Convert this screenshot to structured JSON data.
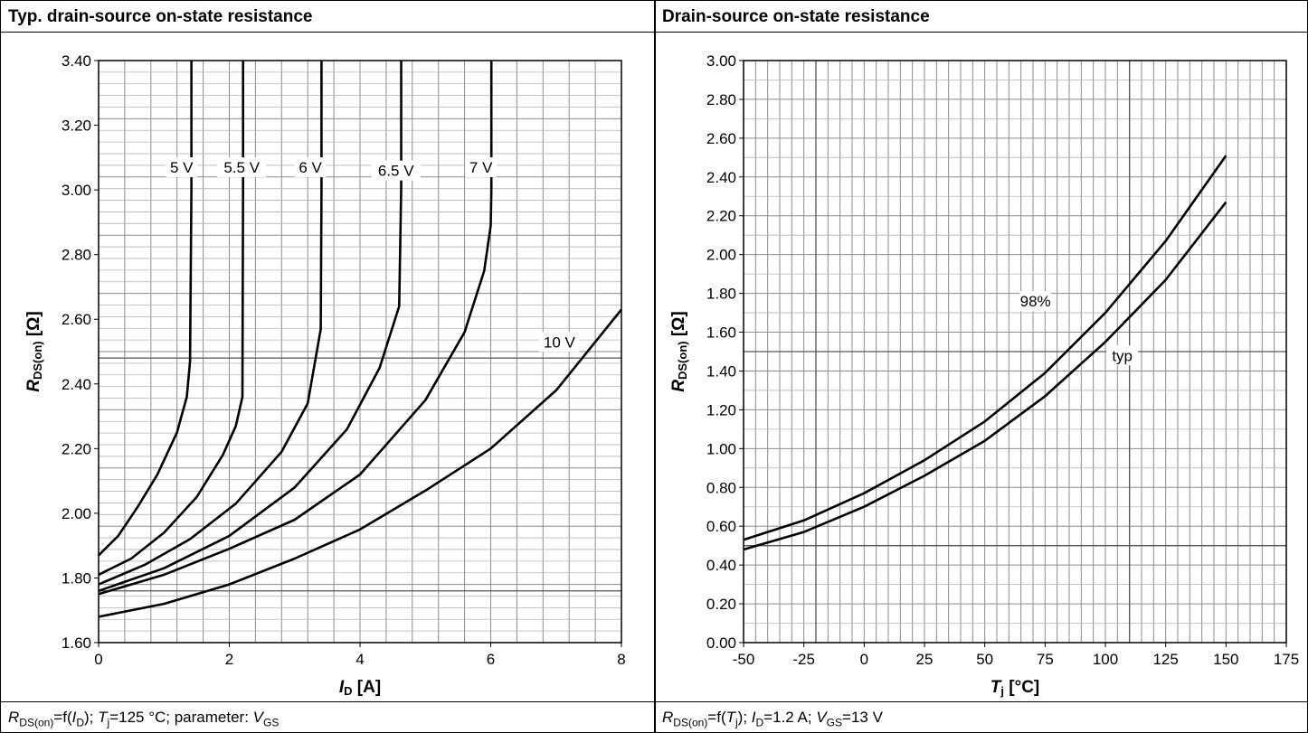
{
  "panels": [
    {
      "title": "Typ. drain-source on-state resistance",
      "footer": {
        "r_sub": "DS(on)",
        "mid": "=f(",
        "arg": "I",
        "arg_sub": "D",
        "rest": "); ",
        "t": "T",
        "t_sub": "j",
        "t_rest": "=125 °C; parameter: ",
        "v": "V",
        "v_sub": "GS"
      }
    },
    {
      "title": "Drain-source on-state resistance",
      "footer": {
        "r_sub": "DS(on)",
        "mid": "=f(",
        "arg": "T",
        "arg_sub": "j",
        "rest": "); ",
        "i": "I",
        "i_sub": "D",
        "i_rest": "=1.2 A; ",
        "v": "V",
        "v_sub": "GS",
        "v_rest": "=13 V"
      }
    }
  ],
  "chart_data": [
    {
      "type": "line",
      "title": "Typ. drain-source on-state resistance",
      "xlabel_main": "I",
      "xlabel_sub": "D",
      "xlabel_unit": " [A]",
      "ylabel_main": "R",
      "ylabel_sub": "DS(on)",
      "ylabel_unit": " [Ω]",
      "xlim": [
        0,
        8
      ],
      "ylim": [
        1.6,
        3.4
      ],
      "x_ticks": [
        0,
        2,
        4,
        6,
        8
      ],
      "x_tick_labels": [
        "0",
        "2",
        "4",
        "6",
        "8"
      ],
      "y_ticks": [
        1.6,
        1.8,
        2.0,
        2.2,
        2.4,
        2.6,
        2.8,
        3.0,
        3.2,
        3.4
      ],
      "y_tick_labels": [
        "1.60",
        "1.80",
        "2.00",
        "2.20",
        "2.40",
        "2.60",
        "2.80",
        "3.00",
        "3.20",
        "3.40"
      ],
      "grid": true,
      "series": [
        {
          "name": "5 V",
          "x": [
            0,
            0.3,
            0.6,
            0.9,
            1.2,
            1.35,
            1.4,
            1.42,
            1.42
          ],
          "y": [
            1.87,
            1.93,
            2.02,
            2.12,
            2.25,
            2.36,
            2.47,
            3.0,
            3.4
          ],
          "label_x": 1.27,
          "label_y": 3.07
        },
        {
          "name": "5.5 V",
          "x": [
            0,
            0.5,
            1.0,
            1.5,
            1.9,
            2.1,
            2.2,
            2.21,
            2.21
          ],
          "y": [
            1.81,
            1.86,
            1.94,
            2.05,
            2.18,
            2.27,
            2.36,
            3.0,
            3.4
          ],
          "label_x": 2.19,
          "label_y": 3.07
        },
        {
          "name": "6 V",
          "x": [
            0,
            0.7,
            1.4,
            2.1,
            2.8,
            3.2,
            3.4,
            3.41,
            3.41
          ],
          "y": [
            1.78,
            1.84,
            1.92,
            2.03,
            2.19,
            2.34,
            2.57,
            3.0,
            3.4
          ],
          "label_x": 3.24,
          "label_y": 3.07
        },
        {
          "name": "6.5 V",
          "x": [
            0,
            1.0,
            2.0,
            3.0,
            3.8,
            4.3,
            4.6,
            4.63,
            4.63
          ],
          "y": [
            1.76,
            1.83,
            1.93,
            2.08,
            2.26,
            2.45,
            2.64,
            3.0,
            3.4
          ],
          "label_x": 4.55,
          "label_y": 3.06
        },
        {
          "name": "7 V",
          "x": [
            0,
            1.0,
            2.0,
            3.0,
            4.0,
            5.0,
            5.6,
            5.9,
            6.0,
            6.01,
            6.01
          ],
          "y": [
            1.75,
            1.81,
            1.89,
            1.98,
            2.12,
            2.35,
            2.56,
            2.75,
            2.89,
            3.0,
            3.4
          ],
          "label_x": 5.85,
          "label_y": 3.07
        },
        {
          "name": "10 V",
          "x": [
            0,
            1,
            2,
            3,
            4,
            5,
            6,
            7,
            8
          ],
          "y": [
            1.68,
            1.72,
            1.78,
            1.86,
            1.95,
            2.07,
            2.2,
            2.38,
            2.63
          ],
          "label_x": 7.05,
          "label_y": 2.53
        }
      ]
    },
    {
      "type": "line",
      "title": "Drain-source on-state resistance",
      "xlabel_main": "T",
      "xlabel_sub": "j",
      "xlabel_unit": " [°C]",
      "ylabel_main": "R",
      "ylabel_sub": "DS(on)",
      "ylabel_unit": " [Ω]",
      "xlim": [
        -50,
        175
      ],
      "ylim": [
        0,
        3.0
      ],
      "x_ticks": [
        -50,
        -25,
        0,
        25,
        50,
        75,
        100,
        125,
        150,
        175
      ],
      "x_tick_labels": [
        "-50",
        "-25",
        "0",
        "25",
        "50",
        "75",
        "100",
        "125",
        "150",
        "175"
      ],
      "y_ticks": [
        0,
        0.2,
        0.4,
        0.6,
        0.8,
        1.0,
        1.2,
        1.4,
        1.6,
        1.8,
        2.0,
        2.2,
        2.4,
        2.6,
        2.8,
        3.0
      ],
      "y_tick_labels": [
        "0.00",
        "0.20",
        "0.40",
        "0.60",
        "0.80",
        "1.00",
        "1.20",
        "1.40",
        "1.60",
        "1.80",
        "2.00",
        "2.20",
        "2.40",
        "2.60",
        "2.80",
        "3.00"
      ],
      "grid": true,
      "series": [
        {
          "name": "98%",
          "x": [
            -50,
            -25,
            0,
            25,
            50,
            75,
            100,
            125,
            150
          ],
          "y": [
            0.53,
            0.63,
            0.77,
            0.94,
            1.14,
            1.39,
            1.7,
            2.07,
            2.51
          ],
          "label_x": 71,
          "label_y": 1.76
        },
        {
          "name": "typ",
          "x": [
            -50,
            -25,
            0,
            25,
            50,
            75,
            100,
            125,
            150
          ],
          "y": [
            0.48,
            0.57,
            0.7,
            0.86,
            1.04,
            1.27,
            1.55,
            1.87,
            2.27
          ],
          "label_x": 107,
          "label_y": 1.48
        }
      ]
    }
  ]
}
